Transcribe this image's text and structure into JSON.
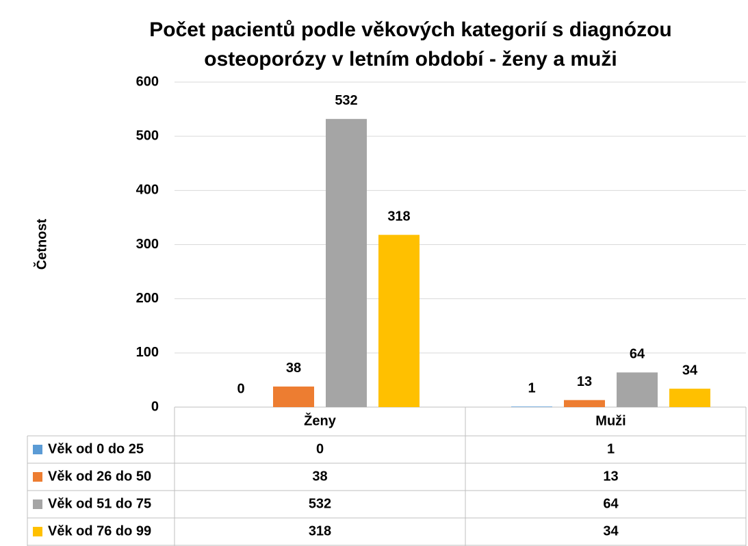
{
  "chart_data": {
    "type": "bar",
    "title": [
      "Počet pacientů podle věkových kategorií s diagnózou",
      "osteoporózy v letním období - ženy a muži"
    ],
    "y_label": "Četnost",
    "categories": [
      "Ženy",
      "Muži"
    ],
    "series": [
      {
        "name": "Věk od 0 do 25",
        "color": "#5b9bd5",
        "values": [
          0,
          1
        ]
      },
      {
        "name": "Věk od 26 do 50",
        "color": "#ed7d31",
        "values": [
          38,
          13
        ]
      },
      {
        "name": "Věk od 51 do 75",
        "color": "#a5a5a5",
        "values": [
          532,
          64
        ]
      },
      {
        "name": "Věk od 76 do 99",
        "color": "#ffc000",
        "values": [
          318,
          34
        ]
      }
    ],
    "ylim": [
      0,
      600
    ],
    "yticks": [
      0,
      100,
      200,
      300,
      400,
      500,
      600
    ],
    "grid": true
  }
}
